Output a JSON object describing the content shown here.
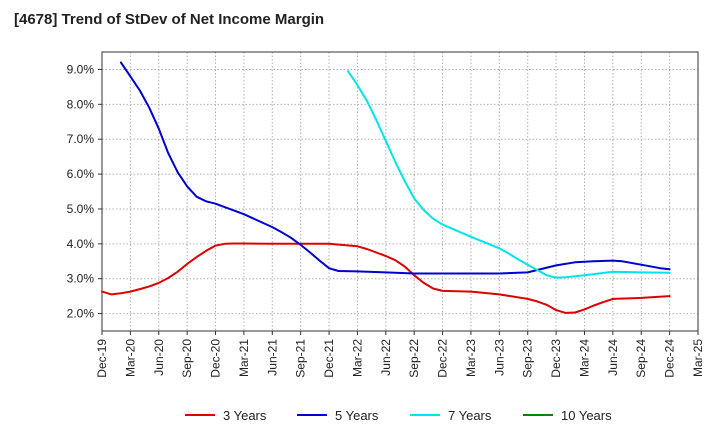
{
  "title": "[4678]  Trend of StDev of Net Income Margin",
  "chart_data": {
    "type": "line",
    "title": "[4678]  Trend of StDev of Net Income Margin",
    "xlabel": "",
    "ylabel": "",
    "ylim": [
      1.5,
      9.5
    ],
    "y_ticks": [
      2.0,
      3.0,
      4.0,
      5.0,
      6.0,
      7.0,
      8.0,
      9.0
    ],
    "y_tick_labels": [
      "2.0%",
      "3.0%",
      "4.0%",
      "5.0%",
      "6.0%",
      "7.0%",
      "8.0%",
      "9.0%"
    ],
    "x_tick_labels": [
      "Dec-19",
      "Mar-20",
      "Jun-20",
      "Sep-20",
      "Dec-20",
      "Mar-21",
      "Jun-21",
      "Sep-21",
      "Dec-21",
      "Mar-22",
      "Jun-22",
      "Sep-22",
      "Dec-22",
      "Mar-23",
      "Jun-23",
      "Sep-23",
      "Dec-23",
      "Mar-24",
      "Jun-24",
      "Sep-24",
      "Dec-24",
      "Mar-25"
    ],
    "grid": true,
    "legend_position": "bottom",
    "x_start": "2019-12",
    "series": [
      {
        "name": "3 Years",
        "color": "#dd0000",
        "points": [
          [
            "2019-12",
            2.63
          ],
          [
            "2020-01",
            2.55
          ],
          [
            "2020-02",
            2.58
          ],
          [
            "2020-03",
            2.63
          ],
          [
            "2020-04",
            2.7
          ],
          [
            "2020-05",
            2.78
          ],
          [
            "2020-06",
            2.88
          ],
          [
            "2020-07",
            3.02
          ],
          [
            "2020-08",
            3.2
          ],
          [
            "2020-09",
            3.42
          ],
          [
            "2020-10",
            3.62
          ],
          [
            "2020-11",
            3.8
          ],
          [
            "2020-12",
            3.95
          ],
          [
            "2021-01",
            4.0
          ],
          [
            "2021-02",
            4.01
          ],
          [
            "2021-03",
            4.01
          ],
          [
            "2021-06",
            4.0
          ],
          [
            "2021-09",
            4.0
          ],
          [
            "2021-12",
            4.0
          ],
          [
            "2022-03",
            3.93
          ],
          [
            "2022-04",
            3.85
          ],
          [
            "2022-05",
            3.75
          ],
          [
            "2022-06",
            3.65
          ],
          [
            "2022-07",
            3.53
          ],
          [
            "2022-08",
            3.35
          ],
          [
            "2022-09",
            3.1
          ],
          [
            "2022-10",
            2.88
          ],
          [
            "2022-11",
            2.72
          ],
          [
            "2022-12",
            2.65
          ],
          [
            "2023-03",
            2.63
          ],
          [
            "2023-06",
            2.55
          ],
          [
            "2023-09",
            2.42
          ],
          [
            "2023-10",
            2.35
          ],
          [
            "2023-11",
            2.25
          ],
          [
            "2023-12",
            2.1
          ],
          [
            "2024-01",
            2.02
          ],
          [
            "2024-02",
            2.03
          ],
          [
            "2024-03",
            2.12
          ],
          [
            "2024-04",
            2.23
          ],
          [
            "2024-05",
            2.33
          ],
          [
            "2024-06",
            2.42
          ],
          [
            "2024-09",
            2.45
          ],
          [
            "2024-12",
            2.5
          ]
        ]
      },
      {
        "name": "5 Years",
        "color": "#0000cc",
        "points": [
          [
            "2020-02",
            9.2
          ],
          [
            "2020-03",
            8.8
          ],
          [
            "2020-04",
            8.4
          ],
          [
            "2020-05",
            7.9
          ],
          [
            "2020-06",
            7.3
          ],
          [
            "2020-07",
            6.6
          ],
          [
            "2020-08",
            6.05
          ],
          [
            "2020-09",
            5.65
          ],
          [
            "2020-10",
            5.35
          ],
          [
            "2020-11",
            5.22
          ],
          [
            "2020-12",
            5.15
          ],
          [
            "2021-03",
            4.85
          ],
          [
            "2021-06",
            4.48
          ],
          [
            "2021-07",
            4.33
          ],
          [
            "2021-08",
            4.17
          ],
          [
            "2021-09",
            3.97
          ],
          [
            "2021-10",
            3.75
          ],
          [
            "2021-11",
            3.52
          ],
          [
            "2021-12",
            3.3
          ],
          [
            "2022-01",
            3.22
          ],
          [
            "2022-03",
            3.21
          ],
          [
            "2022-06",
            3.18
          ],
          [
            "2022-09",
            3.15
          ],
          [
            "2022-12",
            3.15
          ],
          [
            "2023-03",
            3.15
          ],
          [
            "2023-06",
            3.15
          ],
          [
            "2023-09",
            3.18
          ],
          [
            "2023-10",
            3.25
          ],
          [
            "2023-12",
            3.38
          ],
          [
            "2024-02",
            3.47
          ],
          [
            "2024-04",
            3.5
          ],
          [
            "2024-06",
            3.52
          ],
          [
            "2024-07",
            3.5
          ],
          [
            "2024-09",
            3.4
          ],
          [
            "2024-11",
            3.3
          ],
          [
            "2024-12",
            3.27
          ]
        ]
      },
      {
        "name": "7 Years",
        "color": "#00e5e5",
        "points": [
          [
            "2022-02",
            8.95
          ],
          [
            "2022-03",
            8.55
          ],
          [
            "2022-04",
            8.1
          ],
          [
            "2022-05",
            7.55
          ],
          [
            "2022-06",
            6.95
          ],
          [
            "2022-07",
            6.35
          ],
          [
            "2022-08",
            5.8
          ],
          [
            "2022-09",
            5.3
          ],
          [
            "2022-10",
            4.97
          ],
          [
            "2022-11",
            4.72
          ],
          [
            "2022-12",
            4.55
          ],
          [
            "2023-03",
            4.2
          ],
          [
            "2023-06",
            3.87
          ],
          [
            "2023-07",
            3.72
          ],
          [
            "2023-08",
            3.55
          ],
          [
            "2023-09",
            3.4
          ],
          [
            "2023-10",
            3.25
          ],
          [
            "2023-11",
            3.1
          ],
          [
            "2023-12",
            3.03
          ],
          [
            "2024-01",
            3.04
          ],
          [
            "2024-03",
            3.1
          ],
          [
            "2024-06",
            3.2
          ],
          [
            "2024-09",
            3.18
          ],
          [
            "2024-12",
            3.17
          ]
        ]
      },
      {
        "name": "10 Years",
        "color": "#008800",
        "points": []
      }
    ]
  }
}
